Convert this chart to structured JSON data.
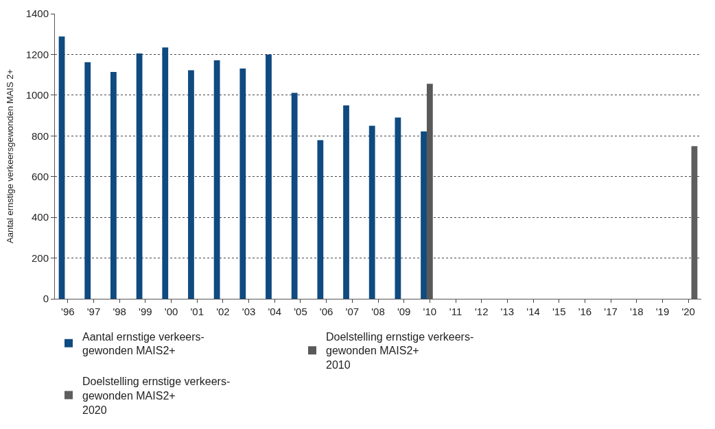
{
  "chart_data": {
    "type": "bar",
    "ylabel": "Aantal ernstige verkeersgewonden MAIS 2+",
    "categories": [
      "'96",
      "'97",
      "'98",
      "'99",
      "'00",
      "'01",
      "'02",
      "'03",
      "'04",
      "'05",
      "'06",
      "'07",
      "'08",
      "'09",
      "'10",
      "'11",
      "'12",
      "'13",
      "'14",
      "'15",
      "'16",
      "'17",
      "'18",
      "'19",
      "'20"
    ],
    "series": [
      {
        "name": "Aantal ernstige verkeers-\ngewonden MAIS2+",
        "color": "#0f4a80",
        "values": [
          1288,
          1162,
          1114,
          1205,
          1234,
          1122,
          1171,
          1131,
          1200,
          1011,
          779,
          950,
          850,
          890,
          822,
          null,
          null,
          null,
          null,
          null,
          null,
          null,
          null,
          null,
          null
        ]
      },
      {
        "name": "Doelstelling ernstige verkeers-\ngewonden MAIS2+\n2010",
        "color": "#595959",
        "values": [
          null,
          null,
          null,
          null,
          null,
          null,
          null,
          null,
          null,
          null,
          null,
          null,
          null,
          null,
          1056,
          null,
          null,
          null,
          null,
          null,
          null,
          null,
          null,
          null,
          null
        ]
      },
      {
        "name": "Doelstelling ernstige verkeers-\ngewonden MAIS2+\n2020",
        "color": "#5e5e5e",
        "values": [
          null,
          null,
          null,
          null,
          null,
          null,
          null,
          null,
          null,
          null,
          null,
          null,
          null,
          null,
          null,
          null,
          null,
          null,
          null,
          null,
          null,
          null,
          null,
          null,
          750
        ]
      }
    ],
    "ylim": [
      0,
      1400
    ],
    "yticks": [
      0,
      200,
      400,
      600,
      800,
      1000,
      1200,
      1400
    ],
    "grid": "y",
    "legend": "bottom"
  }
}
